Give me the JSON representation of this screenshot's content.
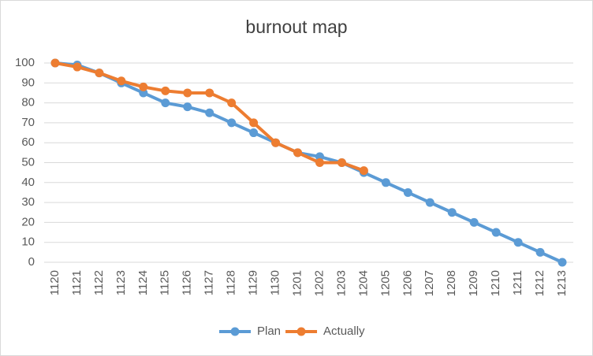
{
  "chart_data": {
    "type": "line",
    "title": "burnout map",
    "categories": [
      "1120",
      "1121",
      "1122",
      "1123",
      "1124",
      "1125",
      "1126",
      "1127",
      "1128",
      "1129",
      "1130",
      "1201",
      "1202",
      "1203",
      "1204",
      "1205",
      "1206",
      "1207",
      "1208",
      "1209",
      "1210",
      "1211",
      "1212",
      "1213"
    ],
    "series": [
      {
        "name": "Plan",
        "color": "#5b9bd5",
        "values": [
          100,
          99,
          95,
          90,
          85,
          80,
          78,
          75,
          70,
          65,
          60,
          55,
          53,
          50,
          45,
          40,
          35,
          30,
          25,
          20,
          15,
          10,
          5,
          0
        ]
      },
      {
        "name": "Actually",
        "color": "#ed7d31",
        "values": [
          100,
          98,
          95,
          91,
          88,
          86,
          85,
          85,
          80,
          70,
          60,
          55,
          50,
          50,
          46,
          null,
          null,
          null,
          null,
          null,
          null,
          null,
          null,
          null
        ]
      }
    ],
    "ylim": [
      0,
      100
    ],
    "yticks": [
      0,
      10,
      20,
      30,
      40,
      50,
      60,
      70,
      80,
      90,
      100
    ],
    "grid": true,
    "legend": "bottom"
  }
}
